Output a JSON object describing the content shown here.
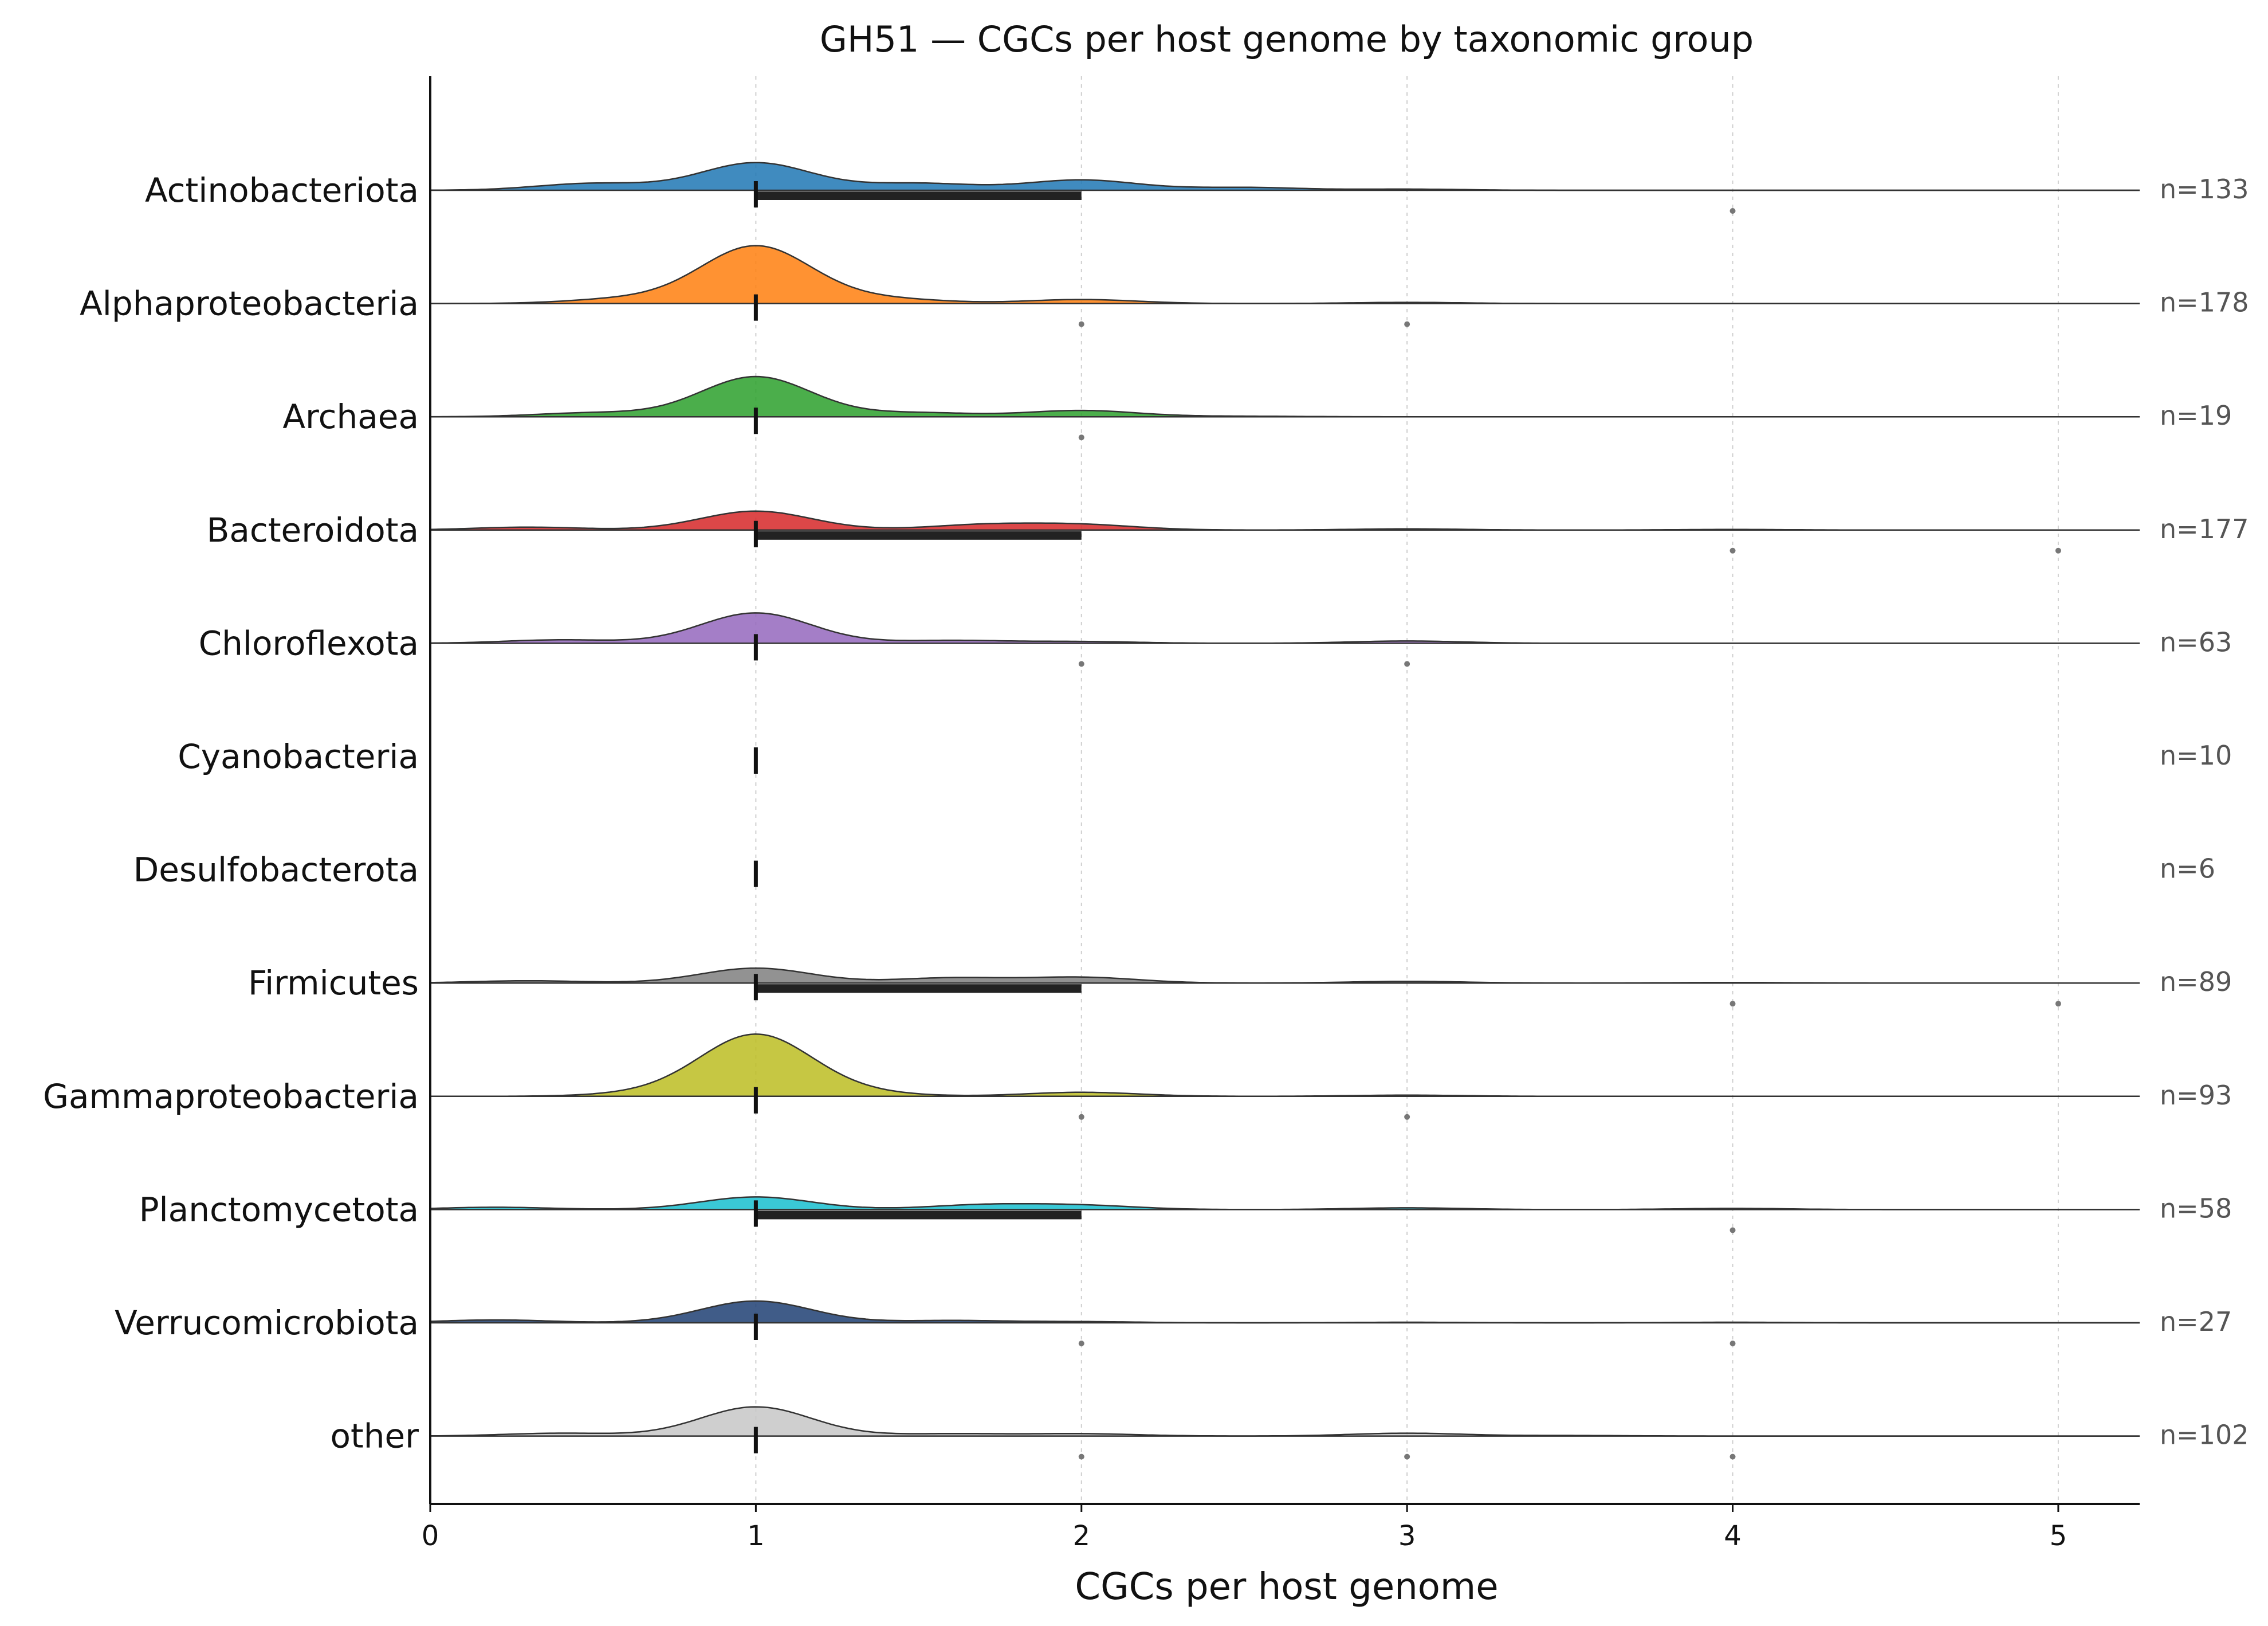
{
  "chart_data": {
    "type": "ridgeline",
    "title": "GH51 — CGCs per host genome by taxonomic group",
    "xlabel": "CGCs per host genome",
    "ylabel": "",
    "xlim": [
      0,
      5.25
    ],
    "xticks": [
      0,
      1,
      2,
      3,
      4,
      5
    ],
    "grid": "vertical dotted at integer ticks",
    "groups": [
      {
        "name": "Actinobacteriota",
        "n_label": "n=133",
        "color": "#1f77b4",
        "median": 1,
        "iqr": [
          1,
          2
        ],
        "outliers": [
          4
        ],
        "density": [
          {
            "x": 0.5,
            "h": 0.12
          },
          {
            "x": 1.0,
            "h": 0.48
          },
          {
            "x": 1.5,
            "h": 0.12
          },
          {
            "x": 2.0,
            "h": 0.18
          },
          {
            "x": 2.5,
            "h": 0.05
          },
          {
            "x": 3.0,
            "h": 0.02
          },
          {
            "x": 3.5,
            "h": 0.0
          }
        ]
      },
      {
        "name": "Alphaproteobacteria",
        "n_label": "n=178",
        "color": "#ff7f0e",
        "median": 1,
        "iqr": [
          1,
          1
        ],
        "outliers": [
          2,
          3
        ],
        "density": [
          {
            "x": 0.6,
            "h": 0.08
          },
          {
            "x": 1.0,
            "h": 1.0
          },
          {
            "x": 1.4,
            "h": 0.08
          },
          {
            "x": 2.0,
            "h": 0.07
          },
          {
            "x": 3.0,
            "h": 0.02
          }
        ]
      },
      {
        "name": "Archaea",
        "n_label": "n=19",
        "color": "#2ca02c",
        "median": 1,
        "iqr": [
          1,
          1
        ],
        "outliers": [
          2
        ],
        "density": [
          {
            "x": 0.5,
            "h": 0.07
          },
          {
            "x": 1.0,
            "h": 0.7
          },
          {
            "x": 1.5,
            "h": 0.07
          },
          {
            "x": 2.0,
            "h": 0.11
          },
          {
            "x": 2.5,
            "h": 0.01
          }
        ]
      },
      {
        "name": "Bacteroidota",
        "n_label": "n=177",
        "color": "#d62728",
        "median": 1,
        "iqr": [
          1,
          2
        ],
        "outliers": [
          4,
          5
        ],
        "density": [
          {
            "x": 0.3,
            "h": 0.05
          },
          {
            "x": 1.0,
            "h": 0.33
          },
          {
            "x": 1.7,
            "h": 0.09
          },
          {
            "x": 2.0,
            "h": 0.09
          },
          {
            "x": 3.0,
            "h": 0.02
          },
          {
            "x": 4.0,
            "h": 0.01
          },
          {
            "x": 5.0,
            "h": 0.0
          }
        ]
      },
      {
        "name": "Chloroflexota",
        "n_label": "n=63",
        "color": "#9467bd",
        "median": 1,
        "iqr": [
          1,
          1
        ],
        "outliers": [
          2,
          3
        ],
        "density": [
          {
            "x": 0.4,
            "h": 0.06
          },
          {
            "x": 1.0,
            "h": 0.53
          },
          {
            "x": 1.6,
            "h": 0.05
          },
          {
            "x": 2.0,
            "h": 0.03
          },
          {
            "x": 3.0,
            "h": 0.04
          },
          {
            "x": 3.5,
            "h": 0.0
          }
        ]
      },
      {
        "name": "Cyanobacteria",
        "n_label": "n=10",
        "color": "#8c564b",
        "median": 1,
        "iqr": [
          1,
          1
        ],
        "outliers": [],
        "density": []
      },
      {
        "name": "Desulfobacterota",
        "n_label": "n=6",
        "color": "#e377c2",
        "median": 1,
        "iqr": [
          1,
          1
        ],
        "outliers": [],
        "density": []
      },
      {
        "name": "Firmicutes",
        "n_label": "n=89",
        "color": "#7f7f7f",
        "median": 1,
        "iqr": [
          1,
          2
        ],
        "outliers": [
          4,
          5
        ],
        "density": [
          {
            "x": 0.3,
            "h": 0.04
          },
          {
            "x": 1.0,
            "h": 0.26
          },
          {
            "x": 1.6,
            "h": 0.09
          },
          {
            "x": 2.0,
            "h": 0.1
          },
          {
            "x": 3.0,
            "h": 0.03
          },
          {
            "x": 4.0,
            "h": 0.01
          },
          {
            "x": 5.0,
            "h": 0.0
          }
        ]
      },
      {
        "name": "Gammaproteobacteria",
        "n_label": "n=93",
        "color": "#bcbd22",
        "median": 1,
        "iqr": [
          1,
          1
        ],
        "outliers": [
          2,
          3
        ],
        "density": [
          {
            "x": 0.7,
            "h": 0.06
          },
          {
            "x": 1.0,
            "h": 1.06
          },
          {
            "x": 1.3,
            "h": 0.06
          },
          {
            "x": 2.0,
            "h": 0.07
          },
          {
            "x": 3.0,
            "h": 0.02
          }
        ]
      },
      {
        "name": "Planctomycetota",
        "n_label": "n=58",
        "color": "#17becf",
        "median": 1,
        "iqr": [
          1,
          2
        ],
        "outliers": [
          4
        ],
        "density": [
          {
            "x": 0.2,
            "h": 0.04
          },
          {
            "x": 1.0,
            "h": 0.22
          },
          {
            "x": 1.7,
            "h": 0.08
          },
          {
            "x": 2.0,
            "h": 0.07
          },
          {
            "x": 3.0,
            "h": 0.03
          },
          {
            "x": 4.0,
            "h": 0.02
          },
          {
            "x": 4.5,
            "h": 0.0
          }
        ]
      },
      {
        "name": "Verrucomicrobiota",
        "n_label": "n=27",
        "color": "#1f3f73",
        "median": 1,
        "iqr": [
          1,
          1
        ],
        "outliers": [
          2,
          4
        ],
        "density": [
          {
            "x": 0.2,
            "h": 0.05
          },
          {
            "x": 1.0,
            "h": 0.38
          },
          {
            "x": 1.6,
            "h": 0.04
          },
          {
            "x": 2.0,
            "h": 0.02
          },
          {
            "x": 3.0,
            "h": 0.01
          },
          {
            "x": 4.0,
            "h": 0.01
          },
          {
            "x": 4.5,
            "h": 0.0
          }
        ]
      },
      {
        "name": "other",
        "n_label": "n=102",
        "color": "#c7c7c7",
        "median": 1,
        "iqr": [
          1,
          1
        ],
        "outliers": [
          2,
          3,
          4
        ],
        "density": [
          {
            "x": 0.4,
            "h": 0.05
          },
          {
            "x": 1.0,
            "h": 0.51
          },
          {
            "x": 1.6,
            "h": 0.04
          },
          {
            "x": 2.0,
            "h": 0.04
          },
          {
            "x": 3.0,
            "h": 0.05
          },
          {
            "x": 3.5,
            "h": 0.01
          },
          {
            "x": 4.0,
            "h": 0.0
          }
        ]
      }
    ]
  }
}
